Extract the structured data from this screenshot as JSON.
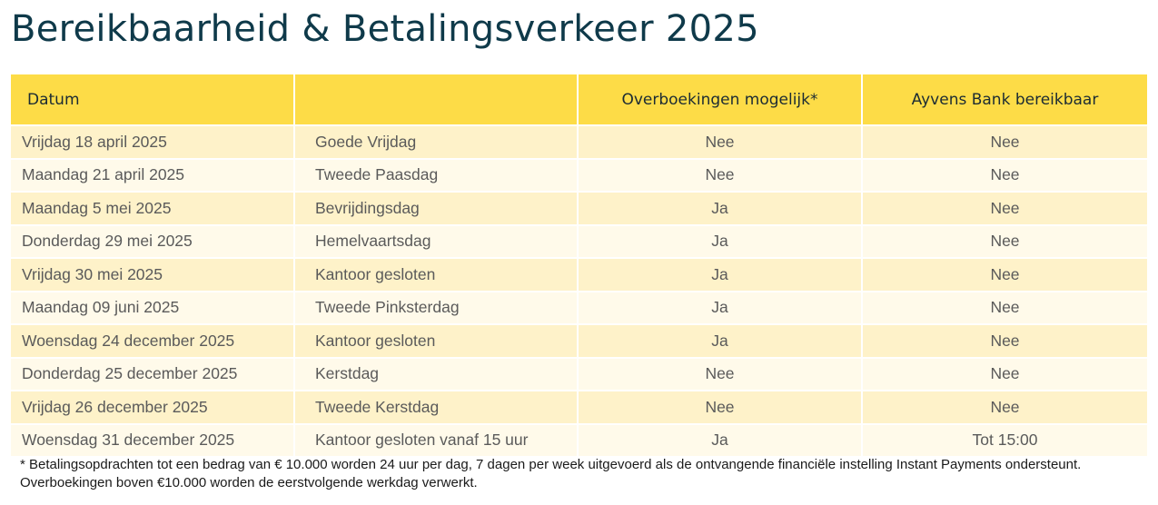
{
  "title": "Bereikbaarheid & Betalingsverkeer 2025",
  "table": {
    "headers": [
      "Datum",
      "",
      "Overboekingen mogelijk*",
      "Ayvens Bank bereikbaar"
    ],
    "rows": [
      [
        "Vrijdag 18 april 2025",
        "Goede Vrijdag",
        "Nee",
        "Nee"
      ],
      [
        "Maandag 21 april 2025",
        "Tweede Paasdag",
        "Nee",
        "Nee"
      ],
      [
        "Maandag 5 mei 2025",
        "Bevrijdingsdag",
        "Ja",
        "Nee"
      ],
      [
        "Donderdag 29 mei 2025",
        "Hemelvaartsdag",
        "Ja",
        "Nee"
      ],
      [
        "Vrijdag 30 mei 2025",
        "Kantoor gesloten",
        "Ja",
        "Nee"
      ],
      [
        "Maandag 09 juni 2025",
        "Tweede Pinksterdag",
        "Ja",
        "Nee"
      ],
      [
        "Woensdag 24 december 2025",
        "Kantoor gesloten",
        "Ja",
        "Nee"
      ],
      [
        "Donderdag 25 december 2025",
        "Kerstdag",
        "Nee",
        "Nee"
      ],
      [
        "Vrijdag 26 december 2025",
        "Tweede Kerstdag",
        "Nee",
        "Nee"
      ],
      [
        "Woensdag 31 december 2025",
        "Kantoor gesloten vanaf 15 uur",
        "Ja",
        "Tot 15:00"
      ]
    ]
  },
  "footnote": "* Betalingsopdrachten tot een bedrag van € 10.000 worden 24 uur per dag, 7 dagen per week uitgevoerd als de ontvangende financiële instelling Instant Payments ondersteunt. Overboekingen boven €10.000 worden de eerstvolgende werkdag verwerkt.",
  "colors": {
    "title": "#0f3a4a",
    "header_bg": "#fddc47",
    "row_odd": "#fef2c9",
    "row_even": "#fffaea"
  }
}
